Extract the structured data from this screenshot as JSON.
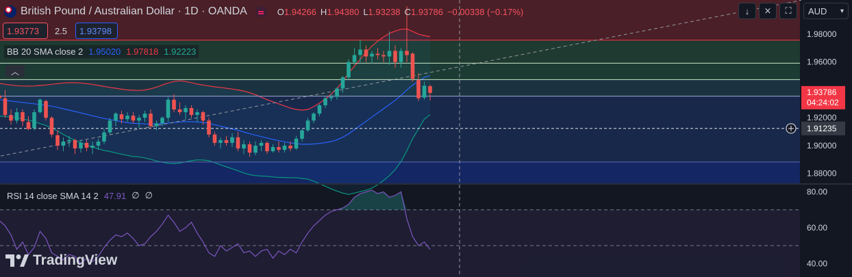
{
  "header": {
    "title": "British Pound / Australian Dollar · 1D · OANDA",
    "ohlc": [
      {
        "k": "O",
        "v": "1.94266"
      },
      {
        "k": "H",
        "v": "1.94380"
      },
      {
        "k": "L",
        "v": "1.93238"
      },
      {
        "k": "C",
        "v": "1.93786"
      }
    ],
    "change": "−0.00338 (−0.17%)"
  },
  "trade": {
    "sell": "1.93773",
    "spread": "2.5",
    "buy": "1.93798"
  },
  "indicators": {
    "bb": {
      "label": "BB 20 SMA close 2",
      "basis": "1.95020",
      "upper": "1.97818",
      "lower": "1.92223"
    },
    "rsi": {
      "label": "RSI 14 close SMA 14 2",
      "value": "47.91",
      "extra1": "∅",
      "extra2": "∅"
    }
  },
  "toolbar": {
    "currency": "AUD"
  },
  "branding": {
    "logo_text": "TradingView"
  },
  "colors": {
    "background": "#131722",
    "up": "#26a69a",
    "down": "#ef5350",
    "bb_basis": "#2962ff",
    "bb_upper": "#f23645",
    "bb_lower": "#089981",
    "rsi_line": "#7e57c2",
    "text": "#d1d4dc"
  },
  "chart_data": {
    "type": "candlestick",
    "timeframe": "1D",
    "price_axis": {
      "ticks": [
        "1.98000",
        "1.96000",
        "1.94000",
        "1.92000",
        "1.90000",
        "1.88000"
      ],
      "ylim": [
        1.873,
        2.0045
      ],
      "last_price_label": "1.93786",
      "countdown_label": "04:24:02",
      "crosshair_label": "1.91235"
    },
    "horizontal_levels": [
      1.9757,
      1.9592,
      1.9474,
      1.9355,
      1.9124,
      1.8883
    ],
    "candles": [
      {
        "o": 1.9275,
        "h": 1.9305,
        "l": 1.918,
        "c": 1.922
      },
      {
        "o": 1.922,
        "h": 1.932,
        "l": 1.9205,
        "c": 1.9305
      },
      {
        "o": 1.929,
        "h": 1.933,
        "l": 1.923,
        "c": 1.926
      },
      {
        "o": 1.9265,
        "h": 1.934,
        "l": 1.924,
        "c": 1.932
      },
      {
        "o": 1.932,
        "h": 1.944,
        "l": 1.93,
        "c": 1.94
      },
      {
        "o": 1.94,
        "h": 1.9465,
        "l": 1.934,
        "c": 1.936
      },
      {
        "o": 1.936,
        "h": 1.9485,
        "l": 1.932,
        "c": 1.934
      },
      {
        "o": 1.934,
        "h": 1.94,
        "l": 1.92,
        "c": 1.922
      },
      {
        "o": 1.922,
        "h": 1.926,
        "l": 1.915,
        "c": 1.918
      },
      {
        "o": 1.918,
        "h": 1.927,
        "l": 1.916,
        "c": 1.924
      },
      {
        "o": 1.924,
        "h": 1.926,
        "l": 1.914,
        "c": 1.9175
      },
      {
        "o": 1.917,
        "h": 1.921,
        "l": 1.911,
        "c": 1.912
      },
      {
        "o": 1.9125,
        "h": 1.926,
        "l": 1.911,
        "c": 1.924
      },
      {
        "o": 1.924,
        "h": 1.934,
        "l": 1.923,
        "c": 1.933
      },
      {
        "o": 1.932,
        "h": 1.933,
        "l": 1.918,
        "c": 1.92
      },
      {
        "o": 1.92,
        "h": 1.921,
        "l": 1.906,
        "c": 1.908
      },
      {
        "o": 1.9075,
        "h": 1.911,
        "l": 1.897,
        "c": 1.9
      },
      {
        "o": 1.9,
        "h": 1.906,
        "l": 1.896,
        "c": 1.903
      },
      {
        "o": 1.903,
        "h": 1.907,
        "l": 1.899,
        "c": 1.904
      },
      {
        "o": 1.904,
        "h": 1.905,
        "l": 1.894,
        "c": 1.898
      },
      {
        "o": 1.898,
        "h": 1.904,
        "l": 1.895,
        "c": 1.902
      },
      {
        "o": 1.902,
        "h": 1.904,
        "l": 1.896,
        "c": 1.8985
      },
      {
        "o": 1.8985,
        "h": 1.903,
        "l": 1.894,
        "c": 1.9
      },
      {
        "o": 1.9,
        "h": 1.905,
        "l": 1.897,
        "c": 1.903
      },
      {
        "o": 1.903,
        "h": 1.912,
        "l": 1.901,
        "c": 1.9095
      },
      {
        "o": 1.9095,
        "h": 1.92,
        "l": 1.908,
        "c": 1.918
      },
      {
        "o": 1.918,
        "h": 1.924,
        "l": 1.914,
        "c": 1.923
      },
      {
        "o": 1.9225,
        "h": 1.925,
        "l": 1.916,
        "c": 1.919
      },
      {
        "o": 1.919,
        "h": 1.924,
        "l": 1.917,
        "c": 1.9215
      },
      {
        "o": 1.9215,
        "h": 1.924,
        "l": 1.916,
        "c": 1.918
      },
      {
        "o": 1.918,
        "h": 1.922,
        "l": 1.913,
        "c": 1.92
      },
      {
        "o": 1.92,
        "h": 1.925,
        "l": 1.917,
        "c": 1.923
      },
      {
        "o": 1.923,
        "h": 1.926,
        "l": 1.912,
        "c": 1.914
      },
      {
        "o": 1.914,
        "h": 1.918,
        "l": 1.911,
        "c": 1.916
      },
      {
        "o": 1.916,
        "h": 1.921,
        "l": 1.914,
        "c": 1.92
      },
      {
        "o": 1.92,
        "h": 1.935,
        "l": 1.917,
        "c": 1.933
      },
      {
        "o": 1.933,
        "h": 1.937,
        "l": 1.924,
        "c": 1.926
      },
      {
        "o": 1.926,
        "h": 1.931,
        "l": 1.922,
        "c": 1.924
      },
      {
        "o": 1.924,
        "h": 1.929,
        "l": 1.919,
        "c": 1.927
      },
      {
        "o": 1.927,
        "h": 1.929,
        "l": 1.92,
        "c": 1.922
      },
      {
        "o": 1.922,
        "h": 1.926,
        "l": 1.917,
        "c": 1.924
      },
      {
        "o": 1.924,
        "h": 1.925,
        "l": 1.915,
        "c": 1.918
      },
      {
        "o": 1.918,
        "h": 1.92,
        "l": 1.906,
        "c": 1.908
      },
      {
        "o": 1.908,
        "h": 1.91,
        "l": 1.9,
        "c": 1.902
      },
      {
        "o": 1.902,
        "h": 1.906,
        "l": 1.898,
        "c": 1.904
      },
      {
        "o": 1.904,
        "h": 1.907,
        "l": 1.9,
        "c": 1.902
      },
      {
        "o": 1.902,
        "h": 1.909,
        "l": 1.899,
        "c": 1.906
      },
      {
        "o": 1.906,
        "h": 1.91,
        "l": 1.896,
        "c": 1.898
      },
      {
        "o": 1.898,
        "h": 1.904,
        "l": 1.894,
        "c": 1.901
      },
      {
        "o": 1.901,
        "h": 1.903,
        "l": 1.892,
        "c": 1.895
      },
      {
        "o": 1.895,
        "h": 1.903,
        "l": 1.893,
        "c": 1.9
      },
      {
        "o": 1.9,
        "h": 1.904,
        "l": 1.896,
        "c": 1.902
      },
      {
        "o": 1.902,
        "h": 1.903,
        "l": 1.894,
        "c": 1.896
      },
      {
        "o": 1.896,
        "h": 1.901,
        "l": 1.895,
        "c": 1.899
      },
      {
        "o": 1.899,
        "h": 1.903,
        "l": 1.895,
        "c": 1.897
      },
      {
        "o": 1.897,
        "h": 1.902,
        "l": 1.895,
        "c": 1.9
      },
      {
        "o": 1.9,
        "h": 1.903,
        "l": 1.896,
        "c": 1.898
      },
      {
        "o": 1.898,
        "h": 1.907,
        "l": 1.897,
        "c": 1.905
      },
      {
        "o": 1.905,
        "h": 1.912,
        "l": 1.903,
        "c": 1.911
      },
      {
        "o": 1.911,
        "h": 1.92,
        "l": 1.91,
        "c": 1.918
      },
      {
        "o": 1.918,
        "h": 1.924,
        "l": 1.916,
        "c": 1.923
      },
      {
        "o": 1.923,
        "h": 1.93,
        "l": 1.921,
        "c": 1.929
      },
      {
        "o": 1.929,
        "h": 1.935,
        "l": 1.927,
        "c": 1.934
      },
      {
        "o": 1.934,
        "h": 1.937,
        "l": 1.932,
        "c": 1.935
      },
      {
        "o": 1.935,
        "h": 1.942,
        "l": 1.933,
        "c": 1.941
      },
      {
        "o": 1.941,
        "h": 1.95,
        "l": 1.938,
        "c": 1.949
      },
      {
        "o": 1.949,
        "h": 1.962,
        "l": 1.948,
        "c": 1.96
      },
      {
        "o": 1.96,
        "h": 1.97,
        "l": 1.958,
        "c": 1.965
      },
      {
        "o": 1.965,
        "h": 1.976,
        "l": 1.96,
        "c": 1.969
      },
      {
        "o": 1.969,
        "h": 1.972,
        "l": 1.96,
        "c": 1.964
      },
      {
        "o": 1.964,
        "h": 1.968,
        "l": 1.959,
        "c": 1.966
      },
      {
        "o": 1.966,
        "h": 1.97,
        "l": 1.962,
        "c": 1.965
      },
      {
        "o": 1.965,
        "h": 1.968,
        "l": 1.96,
        "c": 1.964
      },
      {
        "o": 1.964,
        "h": 1.982,
        "l": 1.958,
        "c": 1.968
      },
      {
        "o": 1.968,
        "h": 1.972,
        "l": 1.956,
        "c": 1.96
      },
      {
        "o": 1.96,
        "h": 1.97,
        "l": 1.956,
        "c": 1.968
      },
      {
        "o": 1.968,
        "h": 2.0,
        "l": 1.96,
        "c": 1.965
      },
      {
        "o": 1.966,
        "h": 1.967,
        "l": 1.946,
        "c": 1.948
      },
      {
        "o": 1.947,
        "h": 1.952,
        "l": 1.932,
        "c": 1.934
      },
      {
        "o": 1.9345,
        "h": 1.946,
        "l": 1.933,
        "c": 1.943
      },
      {
        "o": 1.94266,
        "h": 1.9438,
        "l": 1.93238,
        "c": 1.93786
      }
    ],
    "bollinger": {
      "basis": [
        1.936,
        1.9355,
        1.935,
        1.9345,
        1.934,
        1.9335,
        1.933,
        1.9325,
        1.932,
        1.9315,
        1.931,
        1.9305,
        1.93,
        1.9295,
        1.929,
        1.9283,
        1.9275,
        1.9265,
        1.9255,
        1.9245,
        1.9235,
        1.9225,
        1.9215,
        1.9205,
        1.9195,
        1.9188,
        1.918,
        1.9172,
        1.9165,
        1.916,
        1.9158,
        1.9156,
        1.9155,
        1.9155,
        1.9158,
        1.9162,
        1.9166,
        1.917,
        1.9172,
        1.9172,
        1.917,
        1.9166,
        1.916,
        1.915,
        1.914,
        1.913,
        1.912,
        1.911,
        1.9098,
        1.9086,
        1.9075,
        1.9065,
        1.9055,
        1.9045,
        1.9036,
        1.9028,
        1.902,
        1.9015,
        1.901,
        1.901,
        1.9012,
        1.9016,
        1.9022,
        1.903,
        1.9042,
        1.906,
        1.9085,
        1.9115,
        1.9145,
        1.9175,
        1.9205,
        1.9235,
        1.9265,
        1.9295,
        1.9325,
        1.936,
        1.94,
        1.9435,
        1.946,
        1.949,
        1.9502
      ],
      "upper": [
        1.948,
        1.9478,
        1.9475,
        1.947,
        1.9462,
        1.9455,
        1.9448,
        1.944,
        1.9435,
        1.943,
        1.9428,
        1.9427,
        1.9428,
        1.9432,
        1.9435,
        1.944,
        1.9445,
        1.945,
        1.9452,
        1.9452,
        1.945,
        1.9445,
        1.944,
        1.9432,
        1.9425,
        1.9418,
        1.9412,
        1.9405,
        1.94,
        1.9398,
        1.9396,
        1.94,
        1.9408,
        1.942,
        1.9435,
        1.945,
        1.946,
        1.9465,
        1.946,
        1.9452,
        1.9442,
        1.9435,
        1.9428,
        1.9422,
        1.9418,
        1.9412,
        1.9406,
        1.94,
        1.9392,
        1.938,
        1.9365,
        1.9348,
        1.933,
        1.9315,
        1.93,
        1.9285,
        1.927,
        1.926,
        1.9255,
        1.926,
        1.928,
        1.9305,
        1.9335,
        1.937,
        1.941,
        1.946,
        1.952,
        1.957,
        1.962,
        1.967,
        1.9715,
        1.975,
        1.978,
        1.9805,
        1.9822,
        1.9835,
        1.9837,
        1.982,
        1.98,
        1.979,
        1.9782
      ],
      "lower": [
        1.924,
        1.9232,
        1.9225,
        1.922,
        1.9218,
        1.9215,
        1.9212,
        1.921,
        1.9205,
        1.92,
        1.9192,
        1.9183,
        1.9172,
        1.9158,
        1.9145,
        1.9126,
        1.9105,
        1.908,
        1.9058,
        1.9038,
        1.902,
        1.9005,
        1.899,
        1.8978,
        1.8965,
        1.8958,
        1.8948,
        1.8939,
        1.893,
        1.8922,
        1.892,
        1.8912,
        1.8902,
        1.889,
        1.8881,
        1.8874,
        1.8872,
        1.8875,
        1.8884,
        1.8892,
        1.8898,
        1.8897,
        1.8892,
        1.8878,
        1.8862,
        1.8848,
        1.8834,
        1.882,
        1.8804,
        1.8792,
        1.8785,
        1.8782,
        1.878,
        1.8775,
        1.8772,
        1.8771,
        1.877,
        1.877,
        1.8765,
        1.876,
        1.8744,
        1.8727,
        1.8709,
        1.869,
        1.8674,
        1.866,
        1.865,
        1.866,
        1.867,
        1.868,
        1.8695,
        1.872,
        1.875,
        1.8785,
        1.8828,
        1.8885,
        1.8963,
        1.905,
        1.912,
        1.919,
        1.9222
      ]
    },
    "trendline": {
      "from": {
        "bar": 0,
        "price": 1.8875
      },
      "to": {
        "bar": 147,
        "price": 2.007
      }
    },
    "rsi": {
      "ticks": [
        "80.00",
        "60.00",
        "40.00"
      ],
      "ylim": [
        32.5,
        84.0
      ],
      "levels": [
        70,
        50,
        30
      ],
      "values": [
        52,
        55,
        58,
        62,
        60,
        57,
        64,
        61,
        56,
        48,
        52,
        45,
        49,
        58,
        54,
        46,
        44,
        42,
        45,
        44,
        40,
        43,
        41,
        44,
        49,
        53,
        56,
        55,
        57,
        54,
        50,
        51,
        55,
        58,
        62,
        67,
        63,
        58,
        60,
        63,
        57,
        52,
        46,
        44,
        50,
        47,
        49,
        51,
        46,
        47,
        44,
        47,
        48,
        43,
        47,
        45,
        48,
        46,
        52,
        57,
        61,
        64,
        67,
        69,
        70,
        71,
        73,
        77,
        79,
        80,
        81,
        79,
        80,
        77,
        78,
        80,
        65,
        55,
        50,
        52,
        47.91
      ],
      "line_color": "#7e57c2"
    }
  }
}
